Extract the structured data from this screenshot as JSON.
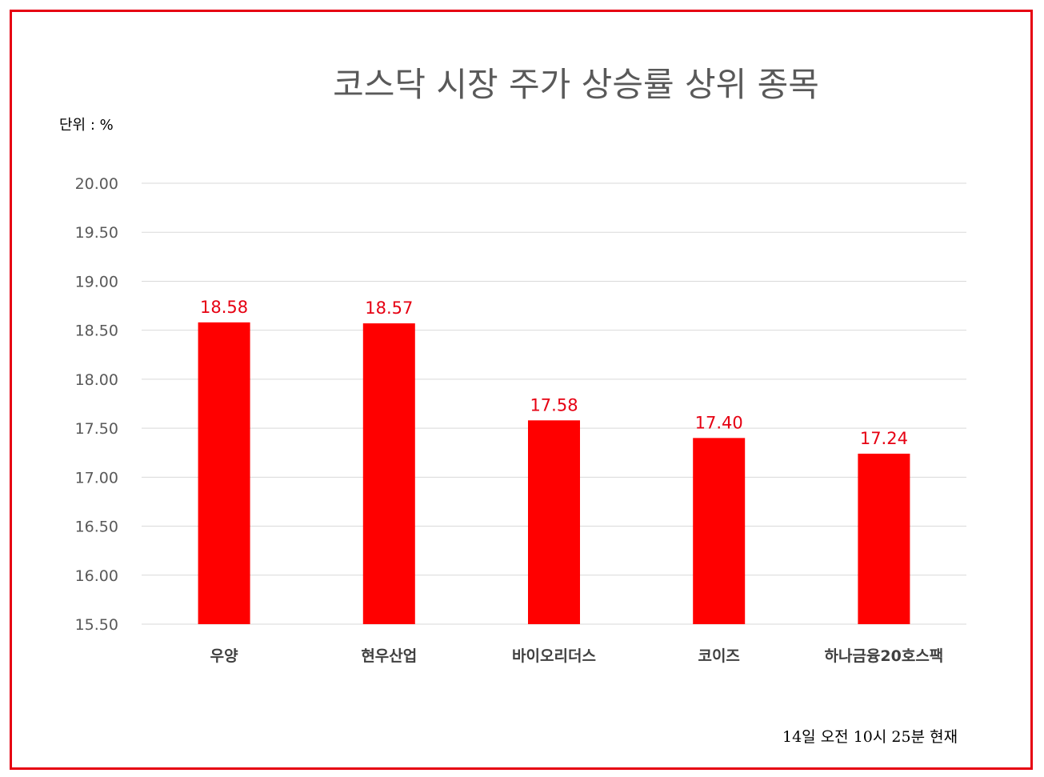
{
  "chart_data": {
    "type": "bar",
    "title": "코스닥 시장 주가 상승률 상위 종목",
    "unit_label": "단위 : %",
    "footnote": "14일  오전 10시 25분 현재",
    "categories": [
      "우양",
      "현우산업",
      "바이오리더스",
      "코이즈",
      "하나금융20호스팩"
    ],
    "values": [
      18.58,
      18.57,
      17.58,
      17.4,
      17.24
    ],
    "data_labels": [
      "18.58",
      "18.57",
      "17.58",
      "17.40",
      "17.24"
    ],
    "ylim": [
      15.5,
      20.0
    ],
    "yticks": [
      "15.50",
      "16.00",
      "16.50",
      "17.00",
      "17.50",
      "18.00",
      "18.50",
      "19.00",
      "19.50",
      "20.00"
    ],
    "grid": true,
    "bar_color": "#ff0000",
    "label_color": "#e60012",
    "border_color": "#e60012"
  }
}
